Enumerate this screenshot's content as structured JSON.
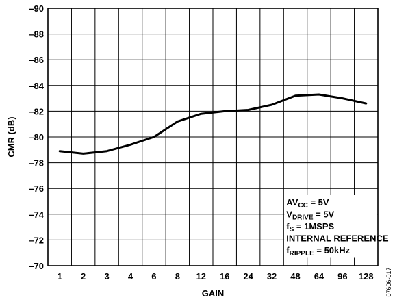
{
  "chart_data": {
    "type": "line",
    "categories": [
      "1",
      "2",
      "3",
      "4",
      "6",
      "8",
      "12",
      "16",
      "24",
      "32",
      "48",
      "64",
      "96",
      "128"
    ],
    "series": [
      {
        "values": [
          -78.9,
          -78.7,
          -78.9,
          -79.4,
          -80.0,
          -81.2,
          -81.8,
          -82.0,
          -82.1,
          -82.5,
          -83.2,
          -83.3,
          -83.0,
          -82.6
        ]
      }
    ],
    "xlabel": "GAIN",
    "ylabel": "CMR (dB)",
    "ylim": [
      -70,
      -90
    ],
    "yticks": [
      -90,
      -88,
      -86,
      -84,
      -82,
      -80,
      -78,
      -76,
      -74,
      -72,
      -70
    ],
    "ytick_labels": [
      "–90",
      "–88",
      "–86",
      "–84",
      "–82",
      "–80",
      "–78",
      "–76",
      "–74",
      "–72",
      "–70"
    ],
    "grid": true,
    "annotation": [
      {
        "main": "AV",
        "sub": "CC",
        "rest": " = 5V"
      },
      {
        "main": "V",
        "sub": "DRIVE",
        "rest": " = 5V"
      },
      {
        "main": "f",
        "sub": "S",
        "rest": " = 1MSPS"
      },
      {
        "main": "INTERNAL REFERENCE",
        "sub": "",
        "rest": ""
      },
      {
        "main": "f",
        "sub": "RIPPLE",
        "rest": " = 50kHz"
      }
    ],
    "figure_code": "07606-017"
  }
}
